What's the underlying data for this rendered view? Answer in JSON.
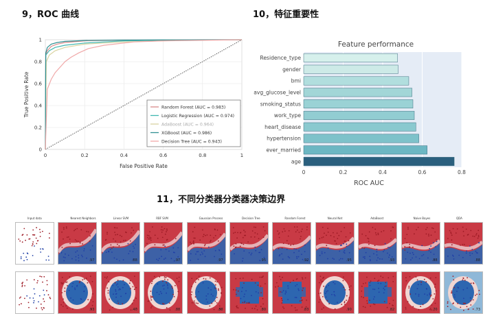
{
  "sections": {
    "roc_title": "9，ROC 曲线",
    "feature_title": "10，特征重要性",
    "boundary_title": "11，不同分类器分类器决策边界"
  },
  "chart_data": [
    {
      "type": "line",
      "xlabel": "False Positive Rate",
      "ylabel": "True Positive Rate",
      "xlim": [
        0,
        1
      ],
      "ylim": [
        0,
        1
      ],
      "xticks": [
        "0",
        "0.2",
        "0.4",
        "0.6",
        "0.8",
        "1"
      ],
      "yticks": [
        "0",
        "0.2",
        "0.4",
        "0.6",
        "0.8",
        "1"
      ],
      "grid": true,
      "legend_position": "bottom-right",
      "series": [
        {
          "name": "Random Forest  (AUC = 0.983)",
          "color": "#d98888",
          "x": [
            0,
            0.002,
            0.01,
            0.03,
            0.06,
            0.1,
            0.2,
            0.35,
            0.6,
            0.8,
            1
          ],
          "y": [
            0,
            0.86,
            0.9,
            0.94,
            0.96,
            0.975,
            0.99,
            0.995,
            0.998,
            1,
            1
          ]
        },
        {
          "name": "Logistic Regression  (AUC = 0.974)",
          "color": "#3fb6b0",
          "x": [
            0,
            0.002,
            0.02,
            0.05,
            0.1,
            0.2,
            0.4,
            0.6,
            1
          ],
          "y": [
            0,
            0.86,
            0.9,
            0.93,
            0.95,
            0.97,
            0.99,
            0.995,
            1
          ]
        },
        {
          "name": "AdaBoost  (AUC = 0.964)",
          "color": "#d9d3a0",
          "x": [
            0,
            0.005,
            0.02,
            0.05,
            0.1,
            0.2,
            0.4,
            0.7,
            1
          ],
          "y": [
            0,
            0.8,
            0.86,
            0.9,
            0.93,
            0.96,
            0.98,
            0.995,
            1
          ]
        },
        {
          "name": "XGBoost  (AUC = 0.986)",
          "color": "#2f8f92",
          "x": [
            0,
            0.002,
            0.01,
            0.03,
            0.06,
            0.1,
            0.2,
            0.4,
            1
          ],
          "y": [
            0,
            0.88,
            0.93,
            0.96,
            0.975,
            0.985,
            0.993,
            0.998,
            1
          ]
        },
        {
          "name": "Decision Tree  (AUC = 0.943)",
          "color": "#f0a8a8",
          "x": [
            0,
            0.01,
            0.03,
            0.05,
            0.08,
            0.1,
            0.13,
            0.17,
            0.22,
            0.3,
            0.45,
            0.6,
            1
          ],
          "y": [
            0,
            0.55,
            0.64,
            0.7,
            0.76,
            0.8,
            0.84,
            0.88,
            0.92,
            0.95,
            0.98,
            0.99,
            1
          ]
        }
      ],
      "diagonal": {
        "x": [
          0,
          1
        ],
        "y": [
          0,
          1
        ],
        "color": "#333333",
        "style": "dotted"
      }
    },
    {
      "type": "bar",
      "orientation": "horizontal",
      "title": "Feature performance",
      "xlabel": "ROC AUC",
      "xlim": [
        0,
        0.8
      ],
      "xticks": [
        "0",
        "0.2",
        "0.4",
        "0.6",
        "0.8"
      ],
      "categories": [
        "Residence_type",
        "gender",
        "bmi",
        "avg_glucose_level",
        "smoking_status",
        "work_type",
        "heart_disease",
        "hypertension",
        "ever_married",
        "age"
      ],
      "values": [
        0.475,
        0.478,
        0.532,
        0.548,
        0.553,
        0.56,
        0.568,
        0.583,
        0.625,
        0.762
      ],
      "colors": [
        "#d6f0ec",
        "#cdeae7",
        "#b1dede",
        "#a2d6d7",
        "#9ad2d5",
        "#92cdd2",
        "#8ac9cf",
        "#7ec2ca",
        "#6cb7c3",
        "#2a5f7e"
      ],
      "grid": true
    },
    {
      "type": "heatmap",
      "rows": 2,
      "columns": [
        "Input data",
        "Nearest Neighbors",
        "Linear SVM",
        "RBF SVM",
        "Gaussian Process",
        "Decision Tree",
        "Random Forest",
        "Neural Net",
        "AdaBoost",
        "Naive Bayes",
        "QDA"
      ],
      "scores_row1": [
        "",
        ".97",
        ".88",
        ".97",
        ".97",
        ".95",
        ".92",
        ".95",
        ".93",
        ".88",
        ".88"
      ],
      "scores_row2": [
        "",
        ".93",
        ".40",
        ".88",
        ".88",
        ".80",
        ".83",
        ".90",
        ".82",
        ".70",
        ".73"
      ]
    }
  ]
}
